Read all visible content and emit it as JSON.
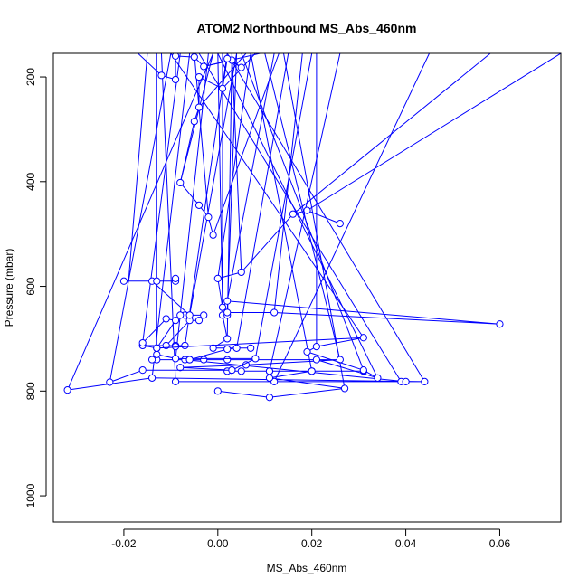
{
  "chart_data": {
    "type": "line",
    "title": "ATOM2 Northbound MS_Abs_460nm",
    "xlabel": "MS_Abs_460nm",
    "ylabel": "Pressure (mbar)",
    "xlim": [
      -0.035,
      0.073
    ],
    "ylim": [
      1050,
      155
    ],
    "y_reversed": true,
    "x_ticks": [
      -0.02,
      0.0,
      0.02,
      0.04,
      0.06
    ],
    "x_tick_labels": [
      "-0.02",
      "0.00",
      "0.02",
      "0.04",
      "0.06"
    ],
    "y_ticks": [
      200,
      400,
      600,
      800,
      1000
    ],
    "y_tick_labels": [
      "200",
      "400",
      "600",
      "800",
      "1000"
    ],
    "grid": false,
    "series_color": "#0000ff",
    "series": [
      {
        "points": [
          [
            -0.032,
            798
          ],
          [
            -0.014,
            775
          ],
          [
            0.044,
            782
          ],
          [
            0.039,
            782
          ],
          [
            -0.009,
            782
          ],
          [
            0.012,
            782
          ],
          [
            0.04,
            782
          ],
          [
            -0.007,
            740
          ],
          [
            0.002,
            740
          ],
          [
            -0.003,
            740
          ],
          [
            -0.006,
            740
          ],
          [
            -0.013,
            740
          ],
          [
            -0.014,
            740
          ],
          [
            0.026,
            740
          ],
          [
            0.006,
            750
          ],
          [
            -0.008,
            755
          ],
          [
            0.003,
            760
          ],
          [
            0.002,
            762
          ],
          [
            0.02,
            762
          ],
          [
            0.031,
            762
          ],
          [
            0.011,
            762
          ],
          [
            0.005,
            762
          ],
          [
            0.011,
            762
          ],
          [
            0.02,
            762
          ],
          [
            0.011,
            775
          ],
          [
            0.027,
            795
          ],
          [
            0.011,
            812
          ],
          [
            0.0,
            800
          ]
        ]
      },
      {
        "points": [
          [
            -0.023,
            783
          ],
          [
            -0.016,
            760
          ],
          [
            0.003,
            760
          ],
          [
            0.008,
            738
          ],
          [
            -0.009,
            738
          ],
          [
            -0.013,
            730
          ],
          [
            -0.013,
            718
          ],
          [
            -0.016,
            713
          ],
          [
            -0.009,
            713
          ],
          [
            -0.009,
            715
          ],
          [
            -0.007,
            713
          ],
          [
            -0.011,
            713
          ],
          [
            -0.006,
            665
          ],
          [
            -0.004,
            665
          ],
          [
            -0.003,
            655
          ],
          [
            -0.007,
            655
          ],
          [
            -0.008,
            655
          ],
          [
            -0.006,
            655
          ],
          [
            -0.014,
            590
          ],
          [
            -0.02,
            590
          ],
          [
            -0.013,
            590
          ],
          [
            -0.009,
            590
          ],
          [
            -0.009,
            585
          ]
        ]
      },
      {
        "points": [
          [
            -0.006,
            740
          ],
          [
            0.002,
            720
          ],
          [
            0.004,
            718
          ],
          [
            0.007,
            718
          ],
          [
            -0.001,
            718
          ],
          [
            0.002,
            700
          ],
          [
            0.001,
            655
          ],
          [
            0.002,
            655
          ],
          [
            0.002,
            650
          ],
          [
            0.012,
            650
          ],
          [
            0.06,
            672
          ],
          [
            0.002,
            628
          ],
          [
            0.001,
            640
          ],
          [
            0.0,
            585
          ],
          [
            0.005,
            573
          ],
          [
            0.016,
            462
          ],
          [
            0.019,
            455
          ],
          [
            0.026,
            480
          ]
        ]
      },
      {
        "points": [
          [
            -0.016,
            708
          ],
          [
            -0.011,
            662
          ],
          [
            -0.009,
            665
          ],
          [
            -0.013,
            718
          ],
          [
            0.031,
            698
          ],
          [
            0.021,
            715
          ],
          [
            0.019,
            725
          ],
          [
            0.031,
            760
          ],
          [
            0.034,
            775
          ],
          [
            0.021,
            740
          ]
        ]
      },
      {
        "points": [
          [
            -0.012,
            197
          ],
          [
            -0.009,
            205
          ],
          [
            -0.009,
            160
          ],
          [
            -0.005,
            162
          ],
          [
            -0.003,
            180
          ],
          [
            0.003,
            168
          ],
          [
            0.005,
            182
          ],
          [
            0.002,
            165
          ],
          [
            0.001,
            222
          ],
          [
            -0.004,
            200
          ],
          [
            -0.004,
            258
          ],
          [
            -0.005,
            285
          ],
          [
            -0.008,
            402
          ],
          [
            -0.004,
            445
          ],
          [
            -0.002,
            468
          ],
          [
            -0.001,
            502
          ]
        ]
      }
    ],
    "background_lines": [
      [
        [
          -0.032,
          798
        ],
        [
          -0.001,
          155
        ]
      ],
      [
        [
          -0.023,
          783
        ],
        [
          -0.01,
          155
        ]
      ],
      [
        [
          -0.016,
          708
        ],
        [
          -0.008,
          155
        ]
      ],
      [
        [
          -0.014,
          775
        ],
        [
          -0.006,
          155
        ]
      ],
      [
        [
          -0.013,
          718
        ],
        [
          -0.013,
          155
        ]
      ],
      [
        [
          -0.012,
          197
        ],
        [
          -0.017,
          155
        ]
      ],
      [
        [
          -0.009,
          738
        ],
        [
          -0.002,
          155
        ]
      ],
      [
        [
          -0.008,
          402
        ],
        [
          -0.001,
          155
        ]
      ],
      [
        [
          -0.007,
          713
        ],
        [
          0.002,
          155
        ]
      ],
      [
        [
          -0.006,
          655
        ],
        [
          0.004,
          155
        ]
      ],
      [
        [
          -0.004,
          258
        ],
        [
          0.006,
          155
        ]
      ],
      [
        [
          -0.003,
          180
        ],
        [
          0.009,
          155
        ]
      ],
      [
        [
          0.0,
          585
        ],
        [
          0.007,
          155
        ]
      ],
      [
        [
          0.001,
          222
        ],
        [
          0.008,
          155
        ]
      ],
      [
        [
          0.002,
          628
        ],
        [
          0.012,
          155
        ]
      ],
      [
        [
          0.002,
          650
        ],
        [
          0.004,
          155
        ]
      ],
      [
        [
          0.004,
          718
        ],
        [
          0.015,
          155
        ]
      ],
      [
        [
          0.008,
          738
        ],
        [
          0.02,
          155
        ]
      ],
      [
        [
          0.011,
          762
        ],
        [
          0.026,
          155
        ]
      ],
      [
        [
          0.012,
          782
        ],
        [
          0.045,
          155
        ]
      ],
      [
        [
          0.016,
          462
        ],
        [
          0.058,
          155
        ]
      ],
      [
        [
          0.019,
          455
        ],
        [
          0.073,
          155
        ]
      ],
      [
        [
          0.021,
          715
        ],
        [
          0.021,
          155
        ]
      ],
      [
        [
          0.026,
          740
        ],
        [
          0.01,
          155
        ]
      ],
      [
        [
          0.031,
          760
        ],
        [
          0.005,
          155
        ]
      ],
      [
        [
          0.034,
          775
        ],
        [
          0.0,
          155
        ]
      ],
      [
        [
          0.039,
          782
        ],
        [
          -0.004,
          155
        ]
      ],
      [
        [
          0.044,
          782
        ],
        [
          0.002,
          155
        ]
      ],
      [
        [
          0.031,
          698
        ],
        [
          -0.01,
          155
        ]
      ],
      [
        [
          0.027,
          795
        ],
        [
          0.014,
          155
        ]
      ],
      [
        [
          0.02,
          762
        ],
        [
          0.007,
          155
        ]
      ],
      [
        [
          -0.009,
          782
        ],
        [
          -0.012,
          155
        ]
      ],
      [
        [
          -0.019,
          590
        ],
        [
          -0.015,
          155
        ]
      ],
      [
        [
          0.005,
          573
        ],
        [
          0.003,
          155
        ]
      ],
      [
        [
          0.001,
          655
        ],
        [
          0.001,
          155
        ]
      ],
      [
        [
          0.002,
          700
        ],
        [
          0.003,
          155
        ]
      ],
      [
        [
          0.012,
          650
        ],
        [
          0.018,
          155
        ]
      ],
      [
        [
          -0.001,
          502
        ],
        [
          0.013,
          155
        ]
      ],
      [
        [
          -0.002,
          468
        ],
        [
          -0.005,
          155
        ]
      ],
      [
        [
          0.001,
          640
        ],
        [
          0.0,
          155
        ]
      ]
    ]
  }
}
